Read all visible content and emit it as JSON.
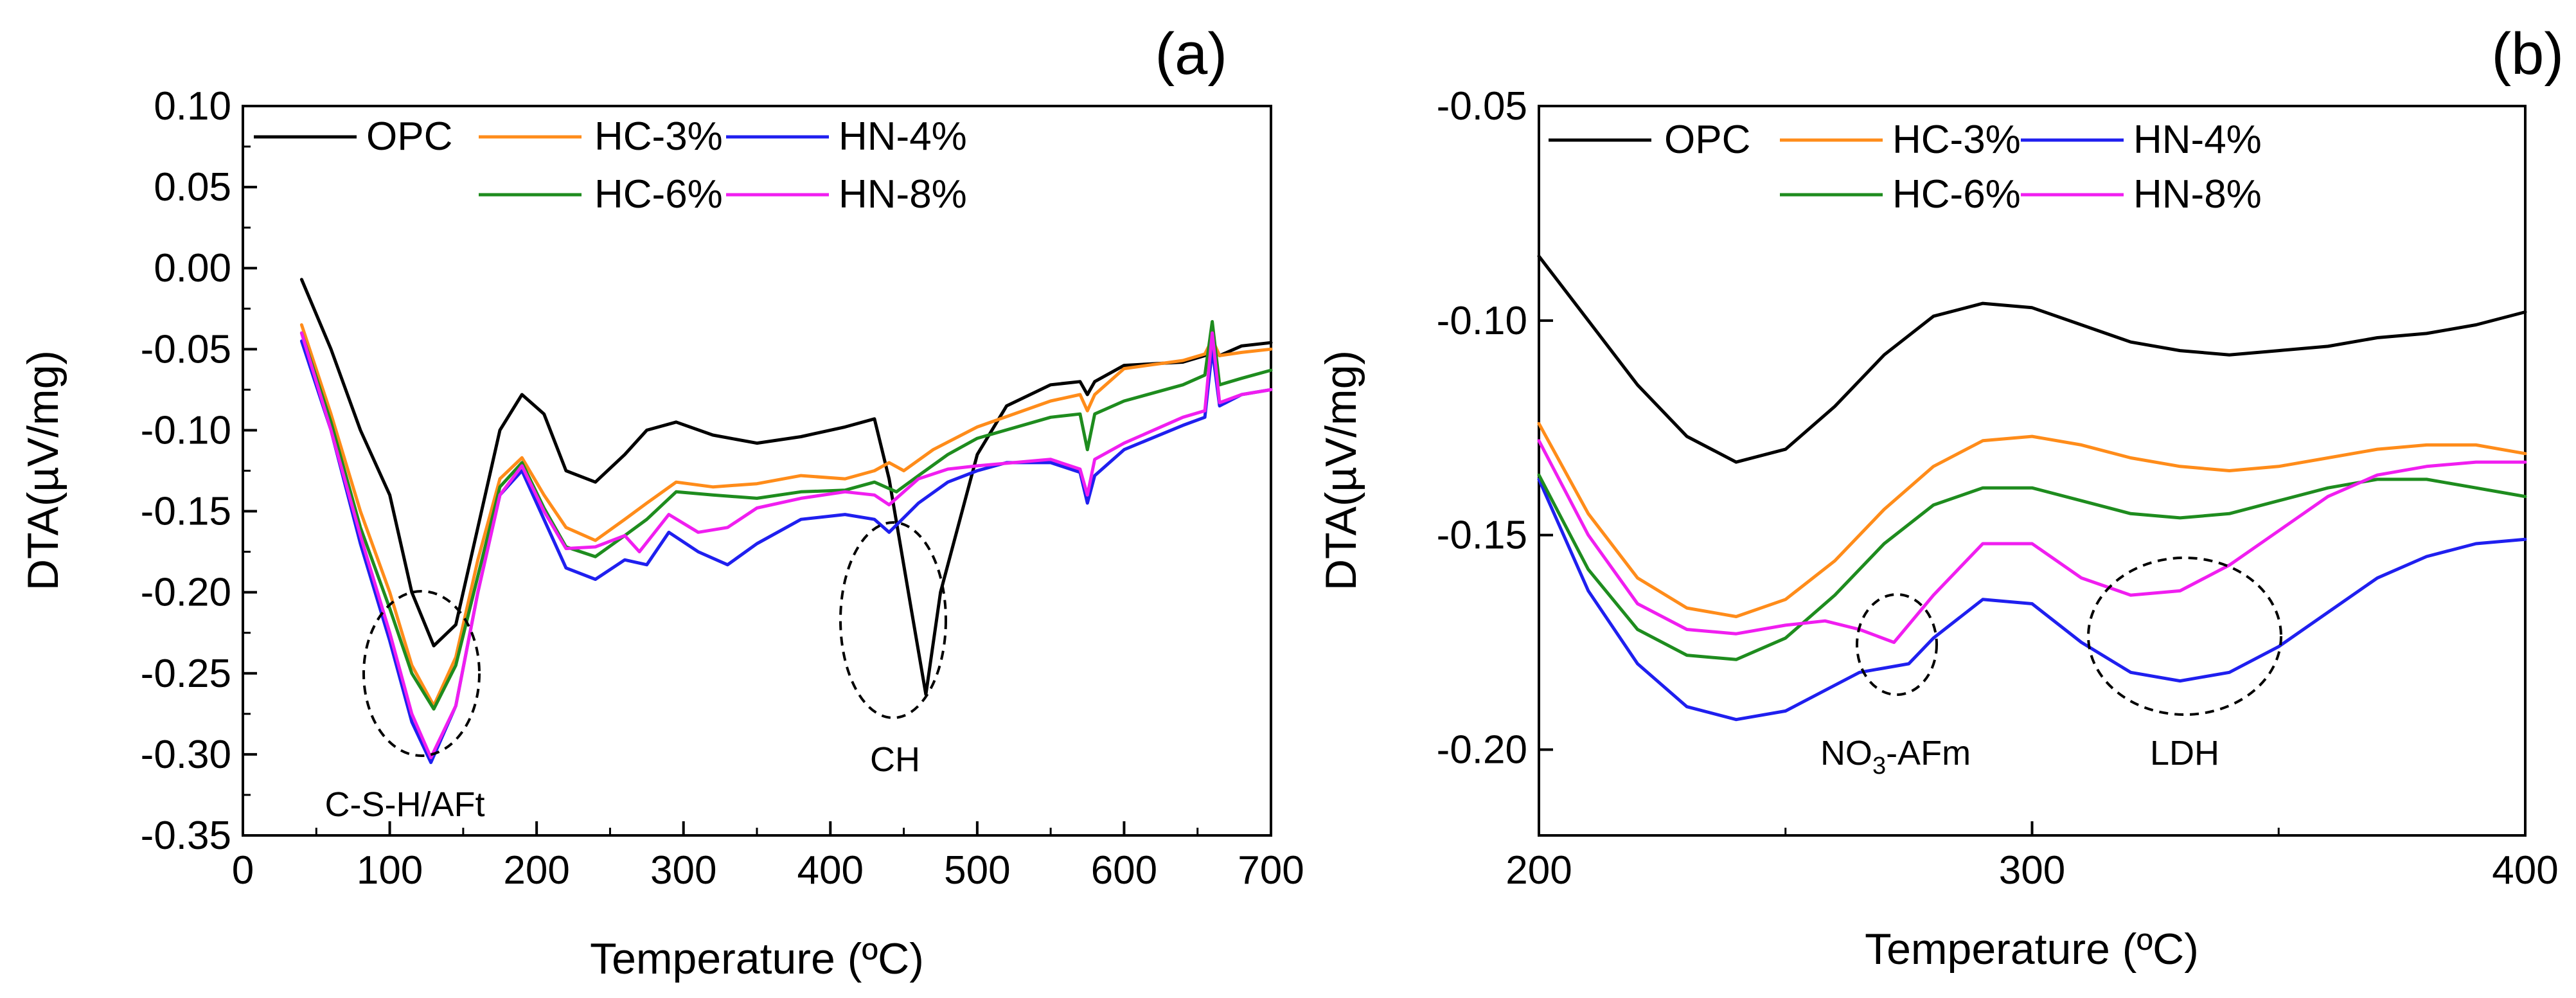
{
  "chart_data": [
    {
      "panel_label": "(a)",
      "type": "line",
      "xlabel": "Temperature (ºC)",
      "ylabel": "DTA(µV/mg)",
      "xlim": [
        0,
        700
      ],
      "ylim": [
        -0.35,
        0.1
      ],
      "xticks": [
        "0",
        "100",
        "200",
        "300",
        "400",
        "500",
        "600",
        "700"
      ],
      "xtick_values": [
        0,
        100,
        200,
        300,
        400,
        500,
        600,
        700
      ],
      "yticks": [
        "0.10",
        "0.05",
        "0.00",
        "-0.05",
        "-0.10",
        "-0.15",
        "-0.20",
        "-0.25",
        "-0.30",
        "-0.35"
      ],
      "ytick_values": [
        0.1,
        0.05,
        0.0,
        -0.05,
        -0.1,
        -0.15,
        -0.2,
        -0.25,
        -0.3,
        -0.35
      ],
      "legend": {
        "position": "top-left"
      },
      "series": [
        {
          "name": "OPC",
          "color": "#000000",
          "x": [
            40,
            60,
            80,
            100,
            115,
            130,
            145,
            160,
            175,
            190,
            205,
            220,
            240,
            260,
            275,
            295,
            320,
            350,
            380,
            410,
            430,
            440,
            455,
            465,
            475,
            500,
            520,
            550,
            570,
            575,
            580,
            600,
            640,
            655,
            660,
            665,
            680,
            700
          ],
          "y": [
            -0.007,
            -0.05,
            -0.1,
            -0.14,
            -0.2,
            -0.233,
            -0.22,
            -0.16,
            -0.1,
            -0.078,
            -0.09,
            -0.125,
            -0.132,
            -0.115,
            -0.1,
            -0.095,
            -0.103,
            -0.108,
            -0.104,
            -0.098,
            -0.093,
            -0.13,
            -0.21,
            -0.263,
            -0.2,
            -0.115,
            -0.085,
            -0.072,
            -0.07,
            -0.078,
            -0.07,
            -0.06,
            -0.058,
            -0.054,
            -0.048,
            -0.054,
            -0.048,
            -0.046
          ]
        },
        {
          "name": "HC-3%",
          "color": "#FF8C1A",
          "x": [
            40,
            60,
            80,
            100,
            115,
            130,
            145,
            160,
            175,
            190,
            205,
            220,
            240,
            260,
            275,
            295,
            320,
            350,
            380,
            410,
            430,
            440,
            450,
            470,
            500,
            550,
            570,
            575,
            580,
            600,
            640,
            655,
            660,
            665,
            680,
            700
          ],
          "y": [
            -0.035,
            -0.09,
            -0.15,
            -0.2,
            -0.245,
            -0.27,
            -0.24,
            -0.18,
            -0.13,
            -0.117,
            -0.14,
            -0.16,
            -0.168,
            -0.155,
            -0.145,
            -0.132,
            -0.135,
            -0.133,
            -0.128,
            -0.13,
            -0.125,
            -0.12,
            -0.125,
            -0.112,
            -0.098,
            -0.082,
            -0.078,
            -0.088,
            -0.078,
            -0.062,
            -0.057,
            -0.053,
            -0.044,
            -0.054,
            -0.052,
            -0.05
          ]
        },
        {
          "name": "HN-4%",
          "color": "#1F1FEF",
          "x": [
            40,
            60,
            80,
            100,
            115,
            128,
            145,
            160,
            175,
            190,
            205,
            220,
            240,
            260,
            275,
            290,
            310,
            330,
            350,
            380,
            410,
            430,
            440,
            460,
            480,
            500,
            520,
            550,
            570,
            575,
            580,
            600,
            640,
            655,
            660,
            665,
            680,
            700
          ],
          "y": [
            -0.045,
            -0.1,
            -0.17,
            -0.23,
            -0.28,
            -0.305,
            -0.27,
            -0.2,
            -0.14,
            -0.125,
            -0.155,
            -0.185,
            -0.192,
            -0.18,
            -0.183,
            -0.163,
            -0.175,
            -0.183,
            -0.17,
            -0.155,
            -0.152,
            -0.155,
            -0.163,
            -0.145,
            -0.132,
            -0.125,
            -0.12,
            -0.12,
            -0.126,
            -0.145,
            -0.128,
            -0.112,
            -0.097,
            -0.092,
            -0.05,
            -0.085,
            -0.078,
            -0.075
          ]
        },
        {
          "name": "HC-6%",
          "color": "#1E8C1E",
          "x": [
            40,
            60,
            80,
            100,
            115,
            130,
            145,
            160,
            175,
            190,
            205,
            220,
            240,
            260,
            275,
            295,
            320,
            350,
            380,
            410,
            430,
            445,
            460,
            480,
            500,
            550,
            570,
            575,
            580,
            600,
            640,
            655,
            660,
            665,
            680,
            700
          ],
          "y": [
            -0.04,
            -0.095,
            -0.16,
            -0.21,
            -0.25,
            -0.272,
            -0.245,
            -0.19,
            -0.135,
            -0.12,
            -0.148,
            -0.172,
            -0.178,
            -0.165,
            -0.155,
            -0.138,
            -0.14,
            -0.142,
            -0.138,
            -0.137,
            -0.132,
            -0.138,
            -0.128,
            -0.115,
            -0.105,
            -0.092,
            -0.09,
            -0.112,
            -0.09,
            -0.082,
            -0.072,
            -0.066,
            -0.033,
            -0.072,
            -0.068,
            -0.063
          ]
        },
        {
          "name": "HN-8%",
          "color": "#F01EF0",
          "x": [
            40,
            60,
            80,
            100,
            115,
            128,
            145,
            160,
            175,
            190,
            205,
            220,
            240,
            260,
            270,
            290,
            310,
            330,
            350,
            380,
            410,
            430,
            440,
            460,
            480,
            500,
            550,
            570,
            575,
            580,
            600,
            640,
            655,
            660,
            665,
            680,
            700
          ],
          "y": [
            -0.04,
            -0.1,
            -0.165,
            -0.225,
            -0.275,
            -0.302,
            -0.27,
            -0.2,
            -0.14,
            -0.122,
            -0.15,
            -0.173,
            -0.172,
            -0.165,
            -0.175,
            -0.152,
            -0.163,
            -0.16,
            -0.148,
            -0.142,
            -0.138,
            -0.14,
            -0.146,
            -0.13,
            -0.124,
            -0.122,
            -0.118,
            -0.124,
            -0.14,
            -0.118,
            -0.108,
            -0.092,
            -0.088,
            -0.04,
            -0.083,
            -0.078,
            -0.075
          ]
        }
      ],
      "annotations": [
        {
          "text": "C-S-H/AFt",
          "x_center": 125,
          "y_center": -0.253
        },
        {
          "text": "CH",
          "x_center": 465,
          "y_center": -0.233
        }
      ]
    },
    {
      "panel_label": "(b)",
      "type": "line",
      "xlabel": "Temperature (ºC)",
      "ylabel": "DTA(µV/mg)",
      "xlim": [
        200,
        400
      ],
      "ylim": [
        -0.22,
        -0.05
      ],
      "xticks": [
        "200",
        "300",
        "400"
      ],
      "xtick_values": [
        200,
        300,
        400
      ],
      "yticks": [
        "-0.05",
        "-0.10",
        "-0.15",
        "-0.20"
      ],
      "ytick_values": [
        -0.05,
        -0.1,
        -0.15,
        -0.2
      ],
      "legend": {
        "position": "top-left"
      },
      "series": [
        {
          "name": "OPC",
          "color": "#000000",
          "x": [
            200,
            210,
            220,
            230,
            240,
            250,
            260,
            270,
            280,
            290,
            300,
            310,
            320,
            330,
            340,
            350,
            360,
            370,
            380,
            390,
            400
          ],
          "y": [
            -0.085,
            -0.1,
            -0.115,
            -0.127,
            -0.133,
            -0.13,
            -0.12,
            -0.108,
            -0.099,
            -0.096,
            -0.097,
            -0.101,
            -0.105,
            -0.107,
            -0.108,
            -0.107,
            -0.106,
            -0.104,
            -0.103,
            -0.101,
            -0.098
          ]
        },
        {
          "name": "HC-3%",
          "color": "#FF8C1A",
          "x": [
            200,
            210,
            220,
            230,
            240,
            250,
            260,
            270,
            280,
            290,
            300,
            310,
            320,
            330,
            340,
            350,
            360,
            370,
            380,
            390,
            400
          ],
          "y": [
            -0.124,
            -0.145,
            -0.16,
            -0.167,
            -0.169,
            -0.165,
            -0.156,
            -0.144,
            -0.134,
            -0.128,
            -0.127,
            -0.129,
            -0.132,
            -0.134,
            -0.135,
            -0.134,
            -0.132,
            -0.13,
            -0.129,
            -0.129,
            -0.131
          ]
        },
        {
          "name": "HN-4%",
          "color": "#1F1FEF",
          "x": [
            200,
            210,
            220,
            230,
            240,
            250,
            260,
            265,
            270,
            275,
            280,
            290,
            300,
            310,
            320,
            330,
            340,
            350,
            360,
            370,
            380,
            390,
            400
          ],
          "y": [
            -0.137,
            -0.163,
            -0.18,
            -0.19,
            -0.193,
            -0.191,
            -0.185,
            -0.182,
            -0.181,
            -0.18,
            -0.174,
            -0.165,
            -0.166,
            -0.175,
            -0.182,
            -0.184,
            -0.182,
            -0.176,
            -0.168,
            -0.16,
            -0.155,
            -0.152,
            -0.151
          ]
        },
        {
          "name": "HC-6%",
          "color": "#1E8C1E",
          "x": [
            200,
            210,
            220,
            230,
            240,
            250,
            260,
            270,
            280,
            290,
            300,
            310,
            320,
            330,
            340,
            350,
            360,
            370,
            380,
            390,
            400
          ],
          "y": [
            -0.136,
            -0.158,
            -0.172,
            -0.178,
            -0.179,
            -0.174,
            -0.164,
            -0.152,
            -0.143,
            -0.139,
            -0.139,
            -0.142,
            -0.145,
            -0.146,
            -0.145,
            -0.142,
            -0.139,
            -0.137,
            -0.137,
            -0.139,
            -0.141
          ]
        },
        {
          "name": "HN-8%",
          "color": "#F01EF0",
          "x": [
            200,
            210,
            220,
            230,
            240,
            250,
            258,
            265,
            272,
            280,
            290,
            300,
            310,
            320,
            330,
            340,
            350,
            360,
            370,
            380,
            390,
            400
          ],
          "y": [
            -0.128,
            -0.15,
            -0.166,
            -0.172,
            -0.173,
            -0.171,
            -0.17,
            -0.172,
            -0.175,
            -0.164,
            -0.152,
            -0.152,
            -0.16,
            -0.164,
            -0.163,
            -0.157,
            -0.149,
            -0.141,
            -0.136,
            -0.134,
            -0.133,
            -0.133
          ]
        }
      ],
      "annotations": [
        {
          "text": "NO3-AFm",
          "x_center": 272,
          "y_center": -0.19
        },
        {
          "text": "LDH",
          "x_center": 330,
          "y_center": -0.19
        }
      ],
      "annotation_parts": {
        "no3_base": "NO",
        "no3_sub": "3",
        "no3_rest": "-AFm"
      }
    }
  ]
}
